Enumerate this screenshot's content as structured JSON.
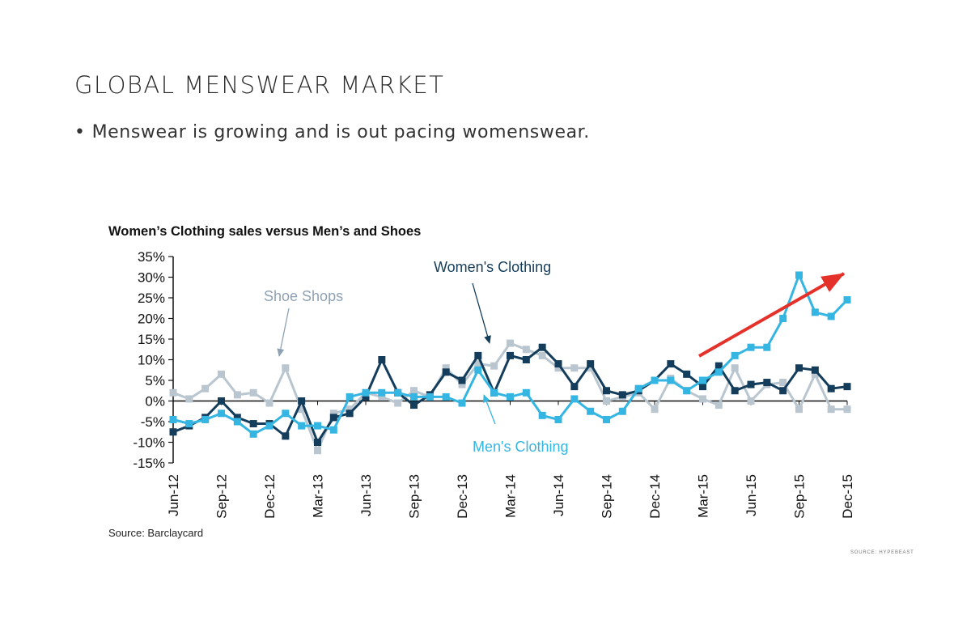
{
  "slide": {
    "title": "GLOBAL MENSWEAR MARKET",
    "bullet_marker": "•",
    "bullet": "Menswear is growing and is out pacing womenswear.",
    "credit": "SOURCE: HYPEBEAST"
  },
  "chart_data": {
    "type": "line",
    "title": "Women’s Clothing sales versus Men’s and Shoes",
    "source": "Source: Barclaycard",
    "ylim": [
      -15,
      35
    ],
    "yticks": [
      35,
      30,
      25,
      20,
      15,
      10,
      5,
      0,
      -5,
      -10,
      -15
    ],
    "ytick_labels": [
      "35%",
      "30%",
      "25%",
      "20%",
      "15%",
      "10%",
      "5%",
      "0%",
      "-5%",
      "-10%",
      "-15%"
    ],
    "x_tick_labels": [
      "Jun-12",
      "Sep-12",
      "Dec-12",
      "Mar-13",
      "Jun-13",
      "Sep-13",
      "Dec-13",
      "Mar-14",
      "Jun-14",
      "Sep-14",
      "Dec-14",
      "Mar-15",
      "Jun-15",
      "Sep-15",
      "Dec-15"
    ],
    "x_tick_index": [
      0,
      3,
      6,
      9,
      12,
      15,
      18,
      21,
      24,
      27,
      30,
      33,
      36,
      39,
      42
    ],
    "num_points": 43,
    "series": [
      {
        "name": "Shoe Shops",
        "color": "#b9c6d0",
        "values": [
          2,
          0.5,
          3,
          6.5,
          1.5,
          2,
          -0.5,
          8,
          -2,
          -12,
          -3,
          -2,
          2,
          1,
          -0.5,
          2.5,
          1,
          8,
          4,
          9,
          8.5,
          14,
          12.5,
          11,
          8,
          8,
          8,
          0,
          1,
          2,
          -2,
          5.5,
          2.5,
          0.5,
          -1,
          8,
          0,
          4,
          4.5,
          -2,
          6.5,
          -2,
          -2
        ]
      },
      {
        "name": "Women's Clothing",
        "color": "#143d5c",
        "values": [
          -7.5,
          -6,
          -4,
          0,
          -4,
          -5.5,
          -5.5,
          -8.5,
          0,
          -10,
          -4,
          -3,
          1,
          10,
          2,
          -1,
          1.5,
          7,
          5,
          11,
          2,
          11,
          10,
          13,
          9,
          3.5,
          9,
          2.5,
          1.5,
          2.5,
          5,
          9,
          6.5,
          3.5,
          8.5,
          2.5,
          4,
          4.5,
          2.5,
          8,
          7.5,
          3,
          3.5
        ]
      },
      {
        "name": "Men's Clothing",
        "color": "#35b5e2",
        "values": [
          -4.5,
          -5.5,
          -4.5,
          -3,
          -5,
          -8,
          -6,
          -3,
          -6,
          -6,
          -7,
          1,
          2,
          2,
          2,
          1,
          1,
          1,
          -0.5,
          7.5,
          2,
          1,
          2,
          -3.5,
          -4.5,
          0.5,
          -2.5,
          -4.5,
          -2.5,
          3,
          5,
          5,
          2.5,
          5,
          7,
          11,
          13,
          13,
          20,
          30.5,
          21.5,
          20.5,
          24.5
        ]
      }
    ],
    "annotations": {
      "shoe": "Shoe Shops",
      "women": "Women's Clothing",
      "men": "Men's Clothing"
    },
    "trend_arrow_color": "#e4322b"
  }
}
